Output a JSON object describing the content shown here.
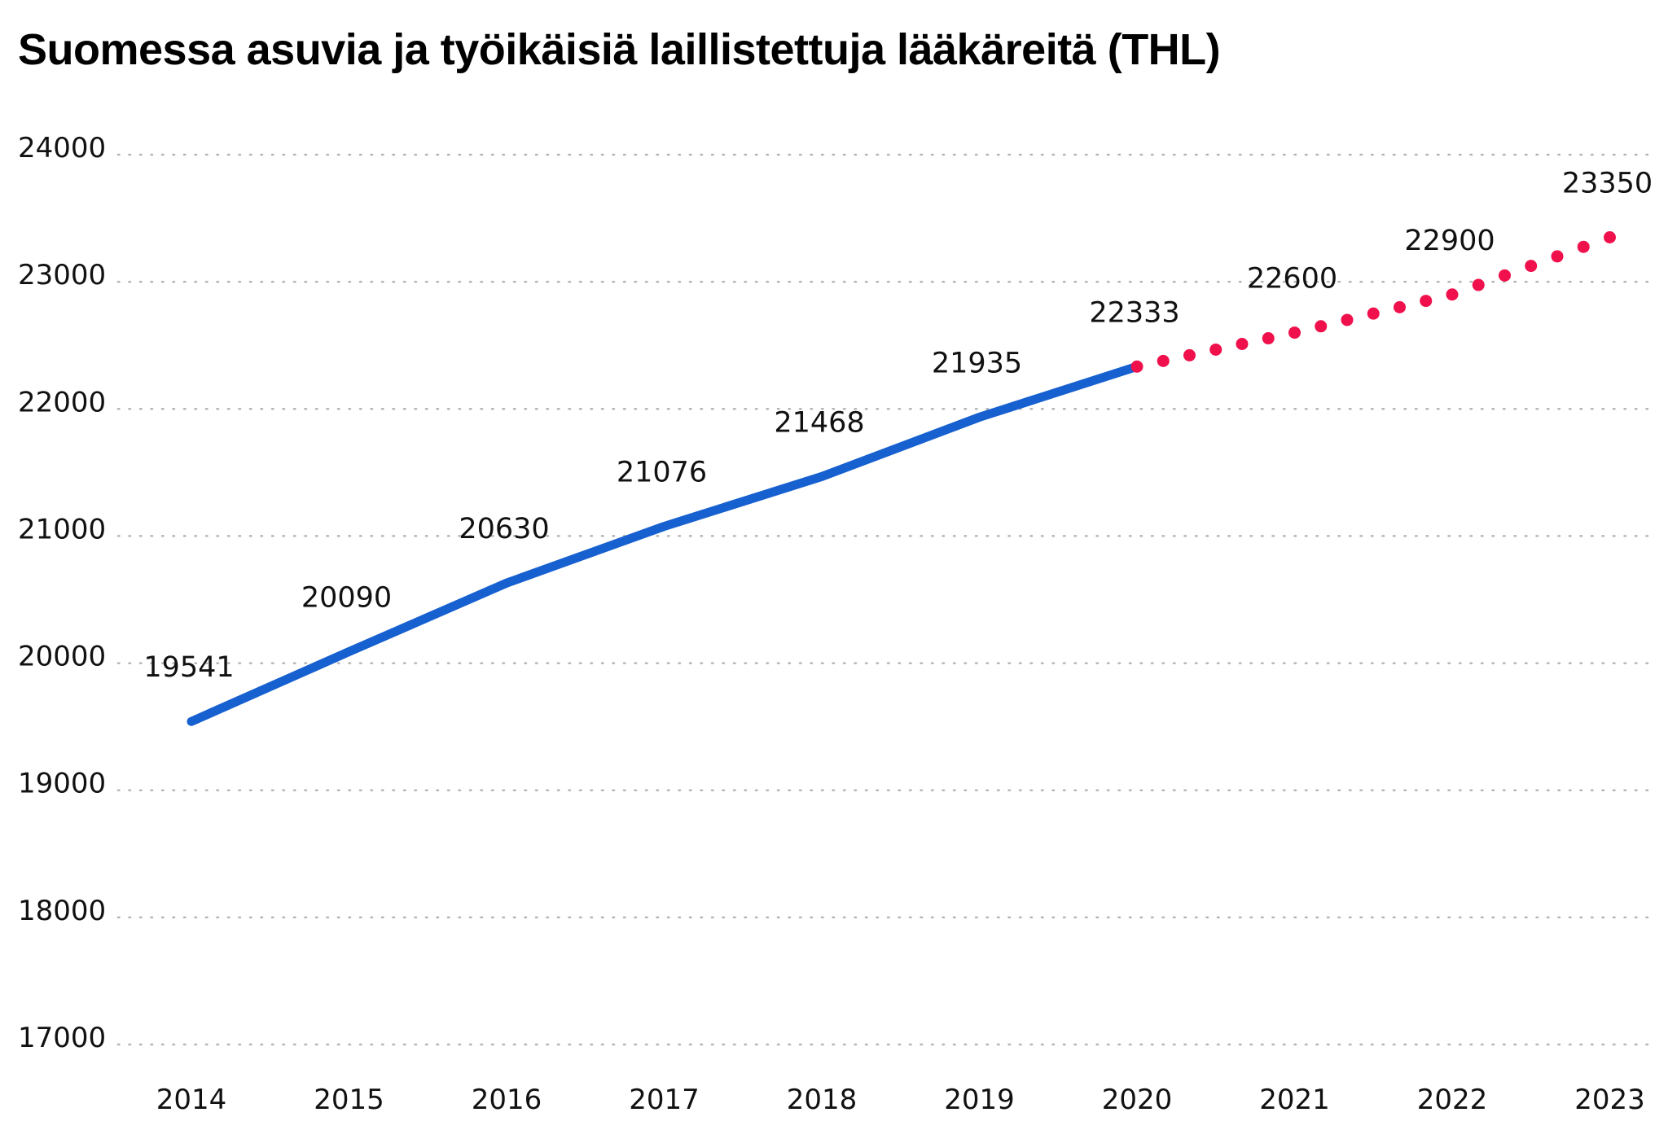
{
  "chart_data": {
    "type": "line",
    "title": "Suomessa asuvia ja työikäisiä laillistettuja lääkäreitä (THL)",
    "xlabel": "",
    "ylabel": "",
    "x": [
      "2014",
      "2015",
      "2016",
      "2017",
      "2018",
      "2019",
      "2020",
      "2021",
      "2022",
      "2023"
    ],
    "ylim": [
      17000,
      24000
    ],
    "yticks": [
      "17000",
      "18000",
      "19000",
      "20000",
      "21000",
      "22000",
      "23000",
      "24000"
    ],
    "grid": true,
    "legend": "none",
    "series": [
      {
        "style": "solid",
        "color": "#1660d0",
        "x": [
          "2014",
          "2015",
          "2016",
          "2017",
          "2018",
          "2019",
          "2020"
        ],
        "values": [
          19541,
          20090,
          20630,
          21076,
          21468,
          21935,
          22333
        ]
      },
      {
        "style": "dotted",
        "color": "#f0104c",
        "x": [
          "2020",
          "2021",
          "2022",
          "2023"
        ],
        "values": [
          22333,
          22600,
          22900,
          23350
        ]
      }
    ],
    "data_labels": [
      {
        "x": "2014",
        "text": "19541"
      },
      {
        "x": "2015",
        "text": "20090"
      },
      {
        "x": "2016",
        "text": "20630"
      },
      {
        "x": "2017",
        "text": "21076"
      },
      {
        "x": "2018",
        "text": "21468"
      },
      {
        "x": "2019",
        "text": "21935"
      },
      {
        "x": "2020",
        "text": "22333"
      },
      {
        "x": "2021",
        "text": "22600"
      },
      {
        "x": "2022",
        "text": "22900"
      },
      {
        "x": "2023",
        "text": "23350"
      }
    ],
    "colors": {
      "gridline": "#b5b5b5",
      "text": "#111111"
    }
  }
}
